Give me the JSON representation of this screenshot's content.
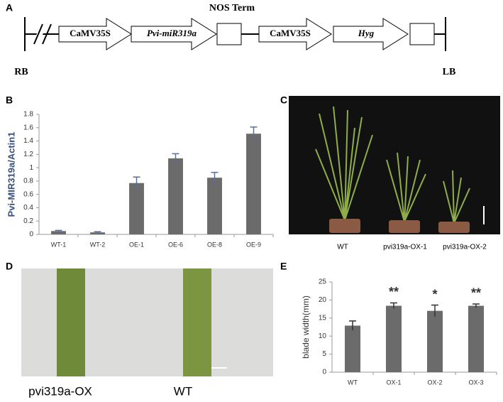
{
  "diagram": {
    "panel": "A",
    "nos_label": "NOS Term",
    "elements": [
      "CaMV35S",
      "Pvi-miR319a",
      "CaMV35S",
      "Hyg"
    ],
    "left_border": "RB",
    "right_border": "LB"
  },
  "photo_c": {
    "panel": "C",
    "labels": [
      "WT",
      "pvi319a-OX-1",
      "pvi319a-OX-2"
    ]
  },
  "photo_d": {
    "panel": "D",
    "labels": [
      "pvi319a-OX",
      "WT"
    ]
  },
  "chart_data": [
    {
      "type": "bar",
      "panel": "B",
      "ylabel": "Pvi-MIR319a/Actin1",
      "categories": [
        "WT-1",
        "WT-2",
        "OE-1",
        "OE-6",
        "OE-8",
        "OE-9"
      ],
      "values": [
        0.05,
        0.03,
        0.77,
        1.14,
        0.85,
        1.51
      ],
      "errors": [
        0.01,
        0.01,
        0.09,
        0.07,
        0.08,
        0.1
      ],
      "ylim": [
        0,
        1.8
      ],
      "yticks": [
        0,
        0.2,
        0.4,
        0.6,
        0.8,
        1,
        1.2,
        1.4,
        1.6,
        1.8
      ],
      "color": "#6b6b6b",
      "error_color": "#5a6e9c"
    },
    {
      "type": "bar",
      "panel": "E",
      "ylabel": "blade width(mm)",
      "categories": [
        "WT",
        "OX-1",
        "OX-2",
        "OX-3"
      ],
      "values": [
        12.9,
        18.4,
        17,
        18.4
      ],
      "errors": [
        1.3,
        0.8,
        1.6,
        0.5
      ],
      "annotations": [
        null,
        "**",
        "*",
        "**"
      ],
      "ylim": [
        0,
        25
      ],
      "yticks": [
        0,
        5,
        10,
        15,
        20,
        25
      ],
      "color": "#6b6b6b",
      "error_color": "#333333"
    }
  ]
}
